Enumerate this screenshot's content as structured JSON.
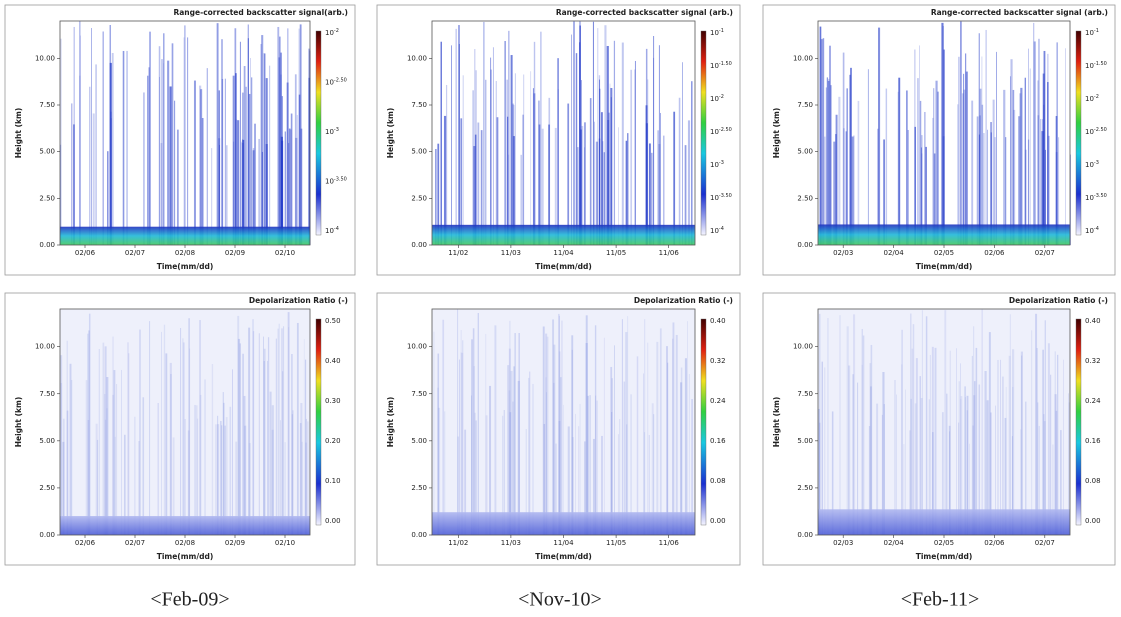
{
  "panels": [
    {
      "title": "Range-corrected backscatter signal(arb.)",
      "y_label": "Height (km)",
      "x_label": "Time(mm/dd)",
      "y_ticks": [
        "0.00",
        "2.50",
        "5.00",
        "7.50",
        "10.00"
      ],
      "x_ticks": [
        "02/06",
        "02/07",
        "02/08",
        "02/09",
        "02/10"
      ],
      "colorbar_labels": [
        {
          "base": "10",
          "exponent": "-2"
        },
        {
          "base": "10",
          "exponent": "-2.50"
        },
        {
          "base": "10",
          "exponent": "-3"
        },
        {
          "base": "10",
          "exponent": "-3.50"
        },
        {
          "base": "10",
          "exponent": "-4"
        }
      ]
    },
    {
      "title": "Range-corrected backscatter signal (arb.)",
      "y_label": "Height (km)",
      "x_label": "Time(mm/dd)",
      "y_ticks": [
        "0.00",
        "2.50",
        "5.00",
        "7.50",
        "10.00"
      ],
      "x_ticks": [
        "11/02",
        "11/03",
        "11/04",
        "11/05",
        "11/06"
      ],
      "colorbar_labels": [
        {
          "base": "10",
          "exponent": "-1"
        },
        {
          "base": "10",
          "exponent": "-1.50"
        },
        {
          "base": "10",
          "exponent": "-2"
        },
        {
          "base": "10",
          "exponent": "-2.50"
        },
        {
          "base": "10",
          "exponent": "-3"
        },
        {
          "base": "10",
          "exponent": "-3.50"
        },
        {
          "base": "10",
          "exponent": "-4"
        }
      ]
    },
    {
      "title": "Range-corrected backscatter signal (arb.)",
      "y_label": "Height (km)",
      "x_label": "Time(mm/dd)",
      "y_ticks": [
        "0.00",
        "2.50",
        "5.00",
        "7.50",
        "10.00"
      ],
      "x_ticks": [
        "02/03",
        "02/04",
        "02/05",
        "02/06",
        "02/07"
      ],
      "colorbar_labels": [
        {
          "base": "10",
          "exponent": "-1"
        },
        {
          "base": "10",
          "exponent": "-1.50"
        },
        {
          "base": "10",
          "exponent": "-2"
        },
        {
          "base": "10",
          "exponent": "-2.50"
        },
        {
          "base": "10",
          "exponent": "-3"
        },
        {
          "base": "10",
          "exponent": "-3.50"
        },
        {
          "base": "10",
          "exponent": "-4"
        }
      ]
    },
    {
      "title": "Depolarization Ratio (-)",
      "y_label": "Height (km)",
      "x_label": "Time(mm/dd)",
      "y_ticks": [
        "0.00",
        "2.50",
        "5.00",
        "7.50",
        "10.00"
      ],
      "x_ticks": [
        "02/06",
        "02/07",
        "02/08",
        "02/09",
        "02/10"
      ],
      "colorbar_labels": [
        "0.50",
        "0.40",
        "0.30",
        "0.20",
        "0.10",
        "0.00"
      ]
    },
    {
      "title": "Depolarization Ratio (-)",
      "y_label": "Height (km)",
      "x_label": "Time(mm/dd)",
      "y_ticks": [
        "0.00",
        "2.50",
        "5.00",
        "7.50",
        "10.00"
      ],
      "x_ticks": [
        "11/02",
        "11/03",
        "11/04",
        "11/05",
        "11/06"
      ],
      "colorbar_labels": [
        "0.40",
        "0.32",
        "0.24",
        "0.16",
        "0.08",
        "0.00"
      ]
    },
    {
      "title": "Depolarization Ratio (-)",
      "y_label": "Height (km)",
      "x_label": "Time(mm/dd)",
      "y_ticks": [
        "0.00",
        "2.50",
        "5.00",
        "7.50",
        "10.00"
      ],
      "x_ticks": [
        "02/03",
        "02/04",
        "02/05",
        "02/06",
        "02/07"
      ],
      "colorbar_labels": [
        "0.40",
        "0.32",
        "0.24",
        "0.16",
        "0.08",
        "0.00"
      ]
    }
  ],
  "captions": [
    "<Feb-09>",
    "<Nov-10>",
    "<Feb-11>"
  ]
}
